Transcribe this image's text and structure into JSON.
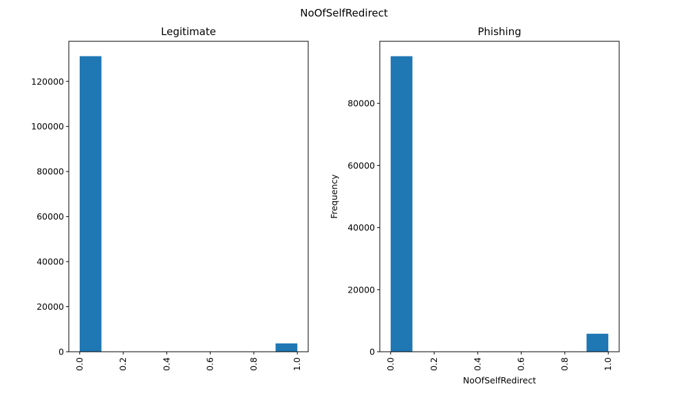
{
  "figure": {
    "title": "NoOfSelfRedirect"
  },
  "colors": {
    "bar": "#1f77b4",
    "axis": "#000000",
    "background": "#ffffff"
  },
  "chart_data": [
    {
      "type": "bar",
      "title": "Legitimate",
      "xlabel": "",
      "ylabel": "",
      "xlim": [
        -0.05,
        1.05
      ],
      "ylim": [
        0,
        137800
      ],
      "xticks": [
        "0.0",
        "0.2",
        "0.4",
        "0.6",
        "0.8",
        "1.0"
      ],
      "yticks": [
        "0",
        "20000",
        "40000",
        "60000",
        "80000",
        "100000",
        "120000"
      ],
      "bins": [
        {
          "x0": 0.0,
          "x1": 0.1,
          "value": 131200
        },
        {
          "x0": 0.9,
          "x1": 1.0,
          "value": 3700
        }
      ],
      "grid": false
    },
    {
      "type": "bar",
      "title": "Phishing",
      "xlabel": "NoOfSelfRedirect",
      "ylabel": "Frequency",
      "xlim": [
        -0.05,
        1.05
      ],
      "ylim": [
        0,
        100000
      ],
      "xticks": [
        "0.0",
        "0.2",
        "0.4",
        "0.6",
        "0.8",
        "1.0"
      ],
      "yticks": [
        "0",
        "20000",
        "40000",
        "60000",
        "80000"
      ],
      "bins": [
        {
          "x0": 0.0,
          "x1": 0.1,
          "value": 95200
        },
        {
          "x0": 0.9,
          "x1": 1.0,
          "value": 5800
        }
      ],
      "grid": false
    }
  ]
}
